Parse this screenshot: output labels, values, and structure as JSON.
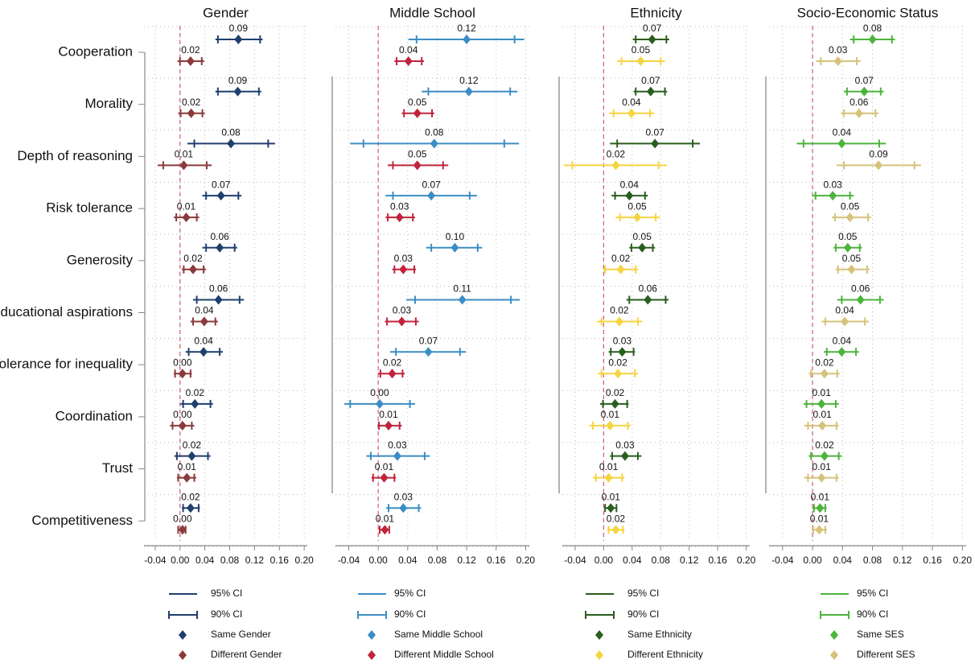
{
  "chart_data": [
    {
      "type": "forest",
      "title": "Gender",
      "categories": [
        "Cooperation",
        "Morality",
        "Depth of reasoning",
        "Risk tolerance",
        "Generosity",
        "Educational aspirations",
        "Tolerance for inequality",
        "Coordination",
        "Trust",
        "Competitiveness"
      ],
      "xlim": [
        -0.058,
        0.205
      ],
      "xticks": [
        -0.04,
        {
          "value": 0,
          "label": "0.00"
        },
        0.04,
        0.08,
        0.12,
        0.16,
        {
          "value": 0.2,
          "label": "0.20"
        }
      ],
      "ci95_label": "95% CI",
      "ci90_label": "90% CI",
      "series": [
        {
          "name": "Same Gender",
          "color": "#1f3f6e",
          "values": [
            0.094,
            0.093,
            0.082,
            0.066,
            0.064,
            0.062,
            0.038,
            0.024,
            0.019,
            0.017
          ],
          "value_labels": [
            "0.09",
            "0.09",
            "0.08",
            "0.07",
            "0.06",
            "0.06",
            "0.04",
            "0.02",
            "0.02",
            "0.02"
          ],
          "ci95_low": [
            0.057,
            0.057,
            0.012,
            0.036,
            0.036,
            0.021,
            0.009,
            0.001,
            -0.009,
            0.003
          ],
          "ci95_high": [
            0.133,
            0.131,
            0.153,
            0.099,
            0.092,
            0.103,
            0.069,
            0.053,
            0.049,
            0.032
          ],
          "ci90_low": [
            0.061,
            0.061,
            0.023,
            0.042,
            0.042,
            0.027,
            0.014,
            0.005,
            -0.005,
            0.005
          ],
          "ci90_high": [
            0.129,
            0.127,
            0.142,
            0.094,
            0.088,
            0.096,
            0.064,
            0.049,
            0.045,
            0.03
          ]
        },
        {
          "name": "Different Gender",
          "color": "#8b3a3a",
          "values": [
            0.017,
            0.018,
            0.006,
            0.01,
            0.021,
            0.039,
            0.004,
            0.004,
            0.011,
            0.004
          ],
          "value_labels": [
            "0.02",
            "0.02",
            "0.01",
            "0.01",
            "0.02",
            "0.04",
            "0.00",
            "0.00",
            "0.01",
            "0.00"
          ],
          "ci95_low": [
            -0.004,
            -0.003,
            -0.036,
            -0.01,
            0.003,
            0.017,
            -0.01,
            -0.016,
            -0.005,
            -0.004
          ],
          "ci95_high": [
            0.039,
            0.04,
            0.051,
            0.031,
            0.042,
            0.061,
            0.019,
            0.023,
            0.026,
            0.01
          ],
          "ci90_low": [
            0.0,
            0.001,
            -0.027,
            -0.006,
            0.006,
            0.021,
            -0.008,
            -0.012,
            -0.003,
            -0.003
          ],
          "ci90_high": [
            0.035,
            0.036,
            0.043,
            0.027,
            0.038,
            0.057,
            0.017,
            0.019,
            0.023,
            0.009
          ]
        }
      ]
    },
    {
      "type": "forest",
      "title": "Middle School",
      "xlim": [
        -0.058,
        0.205
      ],
      "xticks": [
        -0.04,
        {
          "value": 0,
          "label": "0.00"
        },
        0.04,
        0.08,
        0.12,
        0.16,
        {
          "value": 0.2,
          "label": "0.20"
        }
      ],
      "ci95_label": "95% CI",
      "ci90_label": "90% CI",
      "series": [
        {
          "name": "Same Middle School",
          "color": "#3c8dc4",
          "values": [
            0.12,
            0.123,
            0.076,
            0.072,
            0.104,
            0.114,
            0.068,
            0.002,
            0.026,
            0.034
          ],
          "value_labels": [
            "0.12",
            "0.12",
            "0.08",
            "0.07",
            "0.10",
            "0.11",
            "0.07",
            "0.00",
            "0.03",
            "0.03"
          ],
          "ci95_low": [
            0.041,
            0.059,
            -0.038,
            0.01,
            0.065,
            0.038,
            0.016,
            -0.046,
            -0.016,
            0.011
          ],
          "ci95_high": [
            0.198,
            0.189,
            0.191,
            0.134,
            0.141,
            0.192,
            0.119,
            0.05,
            0.07,
            0.058
          ],
          "ci90_low": [
            0.052,
            0.068,
            -0.02,
            0.02,
            0.072,
            0.05,
            0.024,
            -0.038,
            -0.01,
            0.014
          ],
          "ci90_high": [
            0.185,
            0.179,
            0.171,
            0.124,
            0.135,
            0.18,
            0.111,
            0.043,
            0.063,
            0.055
          ]
        },
        {
          "name": "Different Middle School",
          "color": "#c0233a",
          "values": [
            0.041,
            0.053,
            0.053,
            0.029,
            0.034,
            0.032,
            0.019,
            0.014,
            0.008,
            0.009
          ],
          "value_labels": [
            "0.04",
            "0.05",
            "0.05",
            "0.03",
            "0.03",
            "0.03",
            "0.02",
            "0.01",
            "0.01",
            "0.01"
          ],
          "ci95_low": [
            0.022,
            0.032,
            0.013,
            0.01,
            0.019,
            0.009,
            0.0,
            -0.001,
            -0.009,
            0.001
          ],
          "ci95_high": [
            0.062,
            0.076,
            0.095,
            0.05,
            0.051,
            0.055,
            0.036,
            0.032,
            0.024,
            0.016
          ],
          "ci90_low": [
            0.025,
            0.035,
            0.02,
            0.013,
            0.022,
            0.012,
            0.003,
            0.001,
            -0.007,
            0.002
          ],
          "ci90_high": [
            0.059,
            0.073,
            0.088,
            0.047,
            0.049,
            0.051,
            0.033,
            0.029,
            0.022,
            0.015
          ]
        }
      ]
    },
    {
      "type": "forest",
      "title": "Ethnicity",
      "xlim": [
        -0.058,
        0.205
      ],
      "xticks": [
        -0.04,
        {
          "value": 0,
          "label": "0.00"
        },
        0.04,
        0.08,
        0.12,
        0.16,
        {
          "value": 0.2,
          "label": "0.20"
        }
      ],
      "ci95_label": "95% CI",
      "ci90_label": "90% CI",
      "series": [
        {
          "name": "Same Ethnicity",
          "color": "#2a5e1e",
          "values": [
            0.068,
            0.066,
            0.072,
            0.036,
            0.054,
            0.062,
            0.026,
            0.016,
            0.03,
            0.01
          ],
          "value_labels": [
            "0.07",
            "0.07",
            "0.07",
            "0.04",
            "0.05",
            "0.06",
            "0.03",
            "0.02",
            "0.03",
            "0.01"
          ],
          "ci95_low": [
            0.041,
            0.042,
            0.009,
            0.011,
            0.036,
            0.032,
            0.007,
            -0.005,
            0.009,
            0.001
          ],
          "ci95_high": [
            0.092,
            0.089,
            0.135,
            0.062,
            0.072,
            0.091,
            0.044,
            0.035,
            0.053,
            0.019
          ],
          "ci90_low": [
            0.045,
            0.045,
            0.019,
            0.016,
            0.039,
            0.036,
            0.01,
            -0.001,
            0.012,
            0.002
          ],
          "ci90_high": [
            0.088,
            0.086,
            0.125,
            0.058,
            0.069,
            0.087,
            0.042,
            0.033,
            0.048,
            0.018
          ]
        },
        {
          "name": "Different Ethnicity",
          "color": "#f5d442",
          "values": [
            0.052,
            0.039,
            0.017,
            0.047,
            0.024,
            0.022,
            0.02,
            0.009,
            0.007,
            0.017
          ],
          "value_labels": [
            "0.05",
            "0.04",
            "0.02",
            "0.05",
            "0.02",
            "0.02",
            "0.02",
            "0.01",
            "0.01",
            "0.02"
          ],
          "ci95_low": [
            0.019,
            0.008,
            -0.056,
            0.017,
            -0.001,
            -0.009,
            -0.008,
            -0.02,
            -0.015,
            0.005
          ],
          "ci95_high": [
            0.086,
            0.071,
            0.089,
            0.079,
            0.048,
            0.054,
            0.048,
            0.038,
            0.029,
            0.029
          ],
          "ci90_low": [
            0.025,
            0.014,
            -0.044,
            0.023,
            0.002,
            -0.003,
            -0.003,
            -0.015,
            -0.011,
            0.007
          ],
          "ci90_high": [
            0.08,
            0.065,
            0.077,
            0.073,
            0.045,
            0.048,
            0.044,
            0.034,
            0.026,
            0.027
          ]
        }
      ]
    },
    {
      "type": "forest",
      "title": "Socio-Economic Status",
      "xlim": [
        -0.058,
        0.205
      ],
      "xticks": [
        -0.04,
        {
          "value": 0,
          "label": "0.00"
        },
        0.04,
        0.08,
        0.12,
        0.16,
        {
          "value": 0.2,
          "label": "0.20"
        }
      ],
      "ci95_label": "95% CI",
      "ci90_label": "90% CI",
      "series": [
        {
          "name": "Same SES",
          "color": "#4db33d",
          "values": [
            0.08,
            0.069,
            0.039,
            0.027,
            0.047,
            0.064,
            0.039,
            0.012,
            0.016,
            0.01
          ],
          "value_labels": [
            "0.08",
            "0.07",
            "0.04",
            "0.03",
            "0.05",
            "0.06",
            "0.04",
            "0.01",
            "0.02",
            "0.01"
          ],
          "ci95_low": [
            0.05,
            0.042,
            -0.021,
            0.0,
            0.028,
            0.033,
            0.015,
            -0.012,
            -0.005,
            0.0
          ],
          "ci95_high": [
            0.11,
            0.095,
            0.098,
            0.055,
            0.066,
            0.095,
            0.062,
            0.035,
            0.039,
            0.019
          ],
          "ci90_low": [
            0.055,
            0.046,
            -0.012,
            0.004,
            0.031,
            0.039,
            0.019,
            -0.008,
            -0.002,
            0.002
          ],
          "ci90_high": [
            0.106,
            0.091,
            0.089,
            0.05,
            0.063,
            0.09,
            0.058,
            0.031,
            0.035,
            0.017
          ]
        },
        {
          "name": "Different SES",
          "color": "#d6c27a",
          "values": [
            0.034,
            0.062,
            0.088,
            0.05,
            0.052,
            0.043,
            0.016,
            0.013,
            0.012,
            0.009
          ],
          "value_labels": [
            "0.03",
            "0.06",
            "0.09",
            "0.05",
            "0.05",
            "0.04",
            "0.02",
            "0.01",
            "0.01",
            "0.01"
          ],
          "ci95_low": [
            0.005,
            0.038,
            0.032,
            0.026,
            0.031,
            0.012,
            -0.005,
            -0.011,
            -0.011,
            -0.001
          ],
          "ci95_high": [
            0.064,
            0.088,
            0.145,
            0.078,
            0.076,
            0.075,
            0.036,
            0.035,
            0.035,
            0.019
          ],
          "ci90_low": [
            0.011,
            0.042,
            0.042,
            0.03,
            0.034,
            0.017,
            -0.002,
            -0.006,
            -0.006,
            0.001
          ],
          "ci90_high": [
            0.059,
            0.084,
            0.136,
            0.074,
            0.073,
            0.07,
            0.033,
            0.032,
            0.032,
            0.017
          ]
        }
      ]
    }
  ]
}
